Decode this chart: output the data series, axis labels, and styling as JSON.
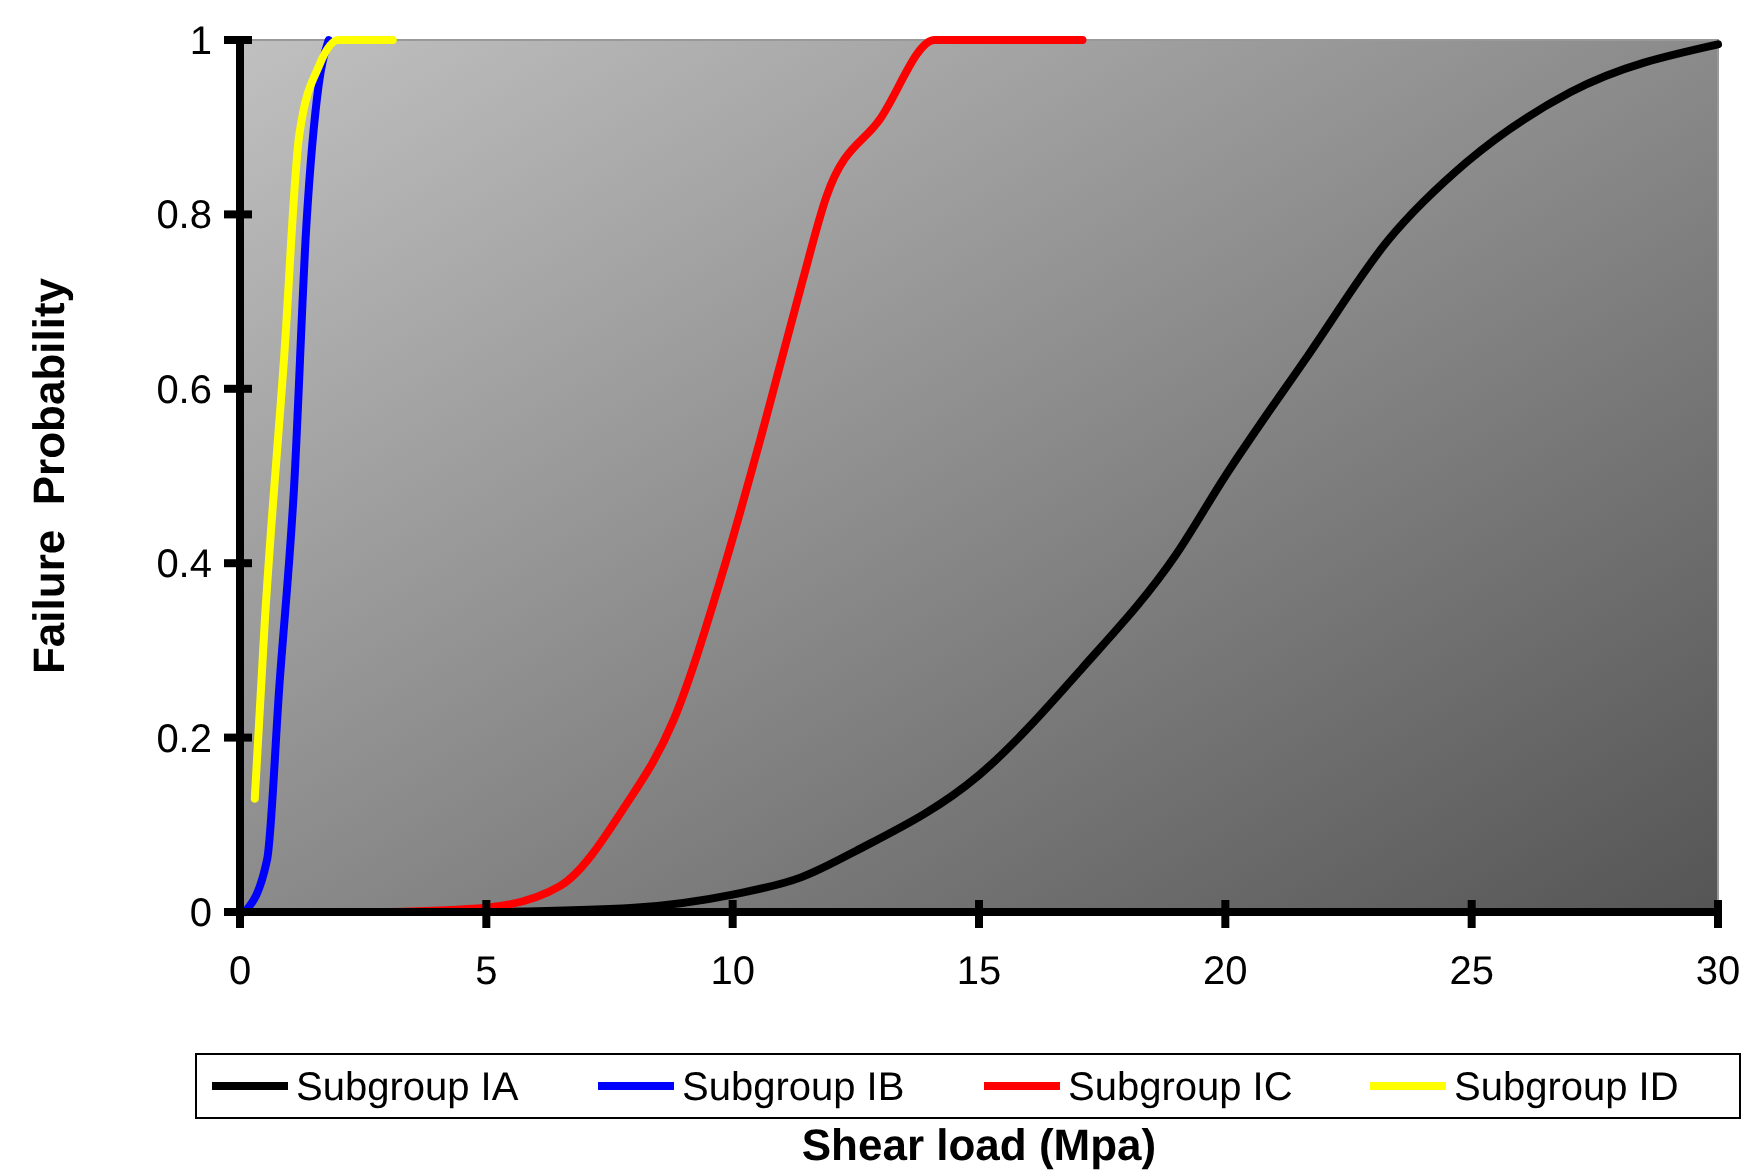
{
  "chart_data": {
    "type": "line",
    "xlabel": "Shear load (Mpa)",
    "ylabel": "Failure  Probability",
    "xlim": [
      0,
      30
    ],
    "xticks": [
      0,
      5,
      10,
      15,
      20,
      25,
      30
    ],
    "ylim": [
      0,
      1
    ],
    "yticks": [
      0,
      0.2,
      0.4,
      0.6,
      0.8,
      1
    ],
    "grid": false,
    "legend": "bottom",
    "line_style": "solid",
    "marker": "none",
    "series": [
      {
        "name": "Subgroup IA",
        "color": "#000000",
        "x": [
          5,
          8,
          10,
          11.4,
          12.5,
          15,
          17.1,
          19,
          20,
          21.7,
          23.3,
          24.9,
          27,
          30
        ],
        "values": [
          0,
          0.005,
          0.02,
          0.04,
          0.07,
          0.157,
          0.28,
          0.41,
          0.5,
          0.64,
          0.77,
          0.86,
          0.94,
          0.995
        ]
      },
      {
        "name": "Subgroup IB",
        "color": "#0000ff",
        "x": [
          0.1,
          0.55,
          0.8,
          1.1,
          1.35,
          1.6,
          1.8
        ],
        "values": [
          0,
          0.06,
          0.26,
          0.49,
          0.79,
          0.95,
          1
        ]
      },
      {
        "name": "Subgroup IC",
        "color": "#ff0000",
        "x": [
          3,
          5,
          6.5,
          7.8,
          8.8,
          9.8,
          10.6,
          11.4,
          11.9,
          13,
          14.1,
          17.1
        ],
        "values": [
          0,
          0.005,
          0.03,
          0.12,
          0.22,
          0.39,
          0.55,
          0.72,
          0.82,
          0.91,
          1,
          1
        ]
      },
      {
        "name": "Subgroup ID",
        "color": "#ffff00",
        "x": [
          0.3,
          0.5,
          0.9,
          1.2,
          1.6,
          2,
          3.1
        ],
        "values": [
          0.13,
          0.33,
          0.64,
          0.89,
          0.97,
          1,
          1
        ]
      }
    ]
  }
}
